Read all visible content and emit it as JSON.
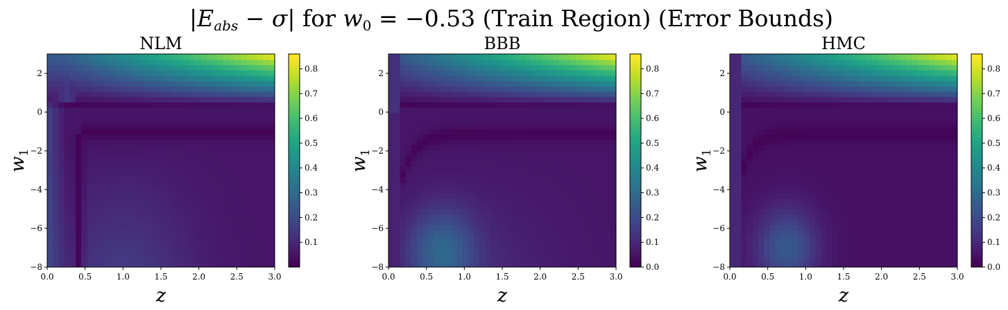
{
  "figure": {
    "title_prefix": "|",
    "title_E": "E",
    "title_E_sub": "abs",
    "title_minus": " − ",
    "title_sigma": "σ",
    "title_mid": "| for ",
    "title_w": "w",
    "title_w_sub": "0",
    "title_eq": " = ",
    "title_value": "−0.53",
    "title_suffix": " (Train Region) (Error Bounds)"
  },
  "chart_data": [
    {
      "type": "heatmap",
      "title": "NLM",
      "xlabel": "z",
      "ylabel_main": "w",
      "ylabel_sub": "1",
      "xlim": [
        0.0,
        3.0
      ],
      "ylim": [
        -8,
        3
      ],
      "xticks": [
        "0.0",
        "0.5",
        "1.0",
        "1.5",
        "2.0",
        "2.5",
        "3.0"
      ],
      "yticks": [
        "−8",
        "−6",
        "−4",
        "−2",
        "0",
        "2"
      ],
      "colorbar_range": [
        0.0,
        0.86
      ],
      "colorbar_ticks": [
        "0.1",
        "0.2",
        "0.3",
        "0.4",
        "0.5",
        "0.6",
        "0.7",
        "0.8"
      ],
      "colormap": "viridis",
      "grid_resolution": [
        40,
        40
      ],
      "description_values": {
        "max": 0.86,
        "max_location": "z=3.0, w1=3"
      }
    },
    {
      "type": "heatmap",
      "title": "BBB",
      "xlabel": "z",
      "ylabel_main": "w",
      "ylabel_sub": "1",
      "xlim": [
        0.0,
        3.0
      ],
      "ylim": [
        -8,
        3
      ],
      "xticks": [
        "0.0",
        "0.5",
        "1.0",
        "1.5",
        "2.0",
        "2.5",
        "3.0"
      ],
      "yticks": [
        "−8",
        "−6",
        "−4",
        "−2",
        "0",
        "2"
      ],
      "colorbar_range": [
        0.0,
        0.86
      ],
      "colorbar_ticks": [
        "0.0",
        "0.1",
        "0.2",
        "0.3",
        "0.4",
        "0.5",
        "0.6",
        "0.7",
        "0.8"
      ],
      "colormap": "viridis",
      "grid_resolution": [
        40,
        40
      ],
      "description_values": {
        "max": 0.86,
        "max_location": "z=3.0, w1=3"
      }
    },
    {
      "type": "heatmap",
      "title": "HMC",
      "xlabel": "z",
      "ylabel_main": "w",
      "ylabel_sub": "1",
      "xlim": [
        0.0,
        3.0
      ],
      "ylim": [
        -8,
        3
      ],
      "xticks": [
        "0.0",
        "0.5",
        "1.0",
        "1.5",
        "2.0",
        "2.5",
        "3.0"
      ],
      "yticks": [
        "−8",
        "−6",
        "−4",
        "−2",
        "0",
        "2"
      ],
      "colorbar_range": [
        0.0,
        0.86
      ],
      "colorbar_ticks": [
        "0.0",
        "0.1",
        "0.2",
        "0.3",
        "0.4",
        "0.5",
        "0.6",
        "0.7",
        "0.8"
      ],
      "colormap": "viridis",
      "grid_resolution": [
        40,
        40
      ],
      "description_values": {
        "max": 0.86,
        "max_location": "z=3.0, w1=3"
      }
    }
  ]
}
